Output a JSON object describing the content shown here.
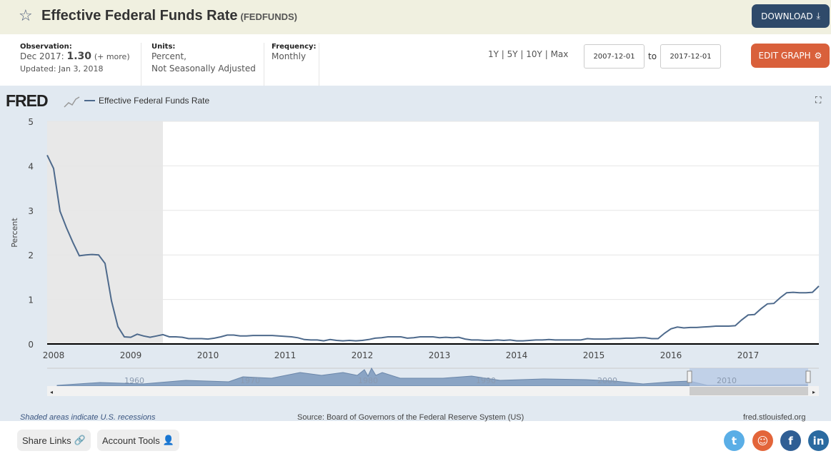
{
  "header": {
    "title": "Effective Federal Funds Rate",
    "series_id": "(FEDFUNDS)",
    "download_label": "DOWNLOAD",
    "edit_graph_label": "EDIT GRAPH"
  },
  "info": {
    "observation_label": "Observation:",
    "observation_date": "Dec 2017:",
    "observation_value": "1.30",
    "more": "(+ more)",
    "updated": "Updated: Jan 3, 2018",
    "units_label": "Units:",
    "units_1": "Percent,",
    "units_2": "Not Seasonally Adjusted",
    "frequency_label": "Frequency:",
    "frequency": "Monthly"
  },
  "range": {
    "options": [
      "1Y",
      "5Y",
      "10Y",
      "Max"
    ],
    "start": "2007-12-01",
    "to": "to",
    "end": "2017-12-01"
  },
  "chart_meta": {
    "logo": "FRED",
    "legend": "Effective Federal Funds Rate",
    "recession_note": "Shaded areas indicate U.S. recessions",
    "source": "Source: Board of Governors of the Federal Reserve System (US)",
    "site": "fred.stlouisfed.org",
    "navigator_labels": [
      "1960",
      "1970",
      "1980",
      "1990",
      "2000",
      "2010"
    ]
  },
  "footer": {
    "share": "Share Links",
    "account": "Account Tools"
  },
  "colors": {
    "line": "#4e6a8c",
    "download": "#2f4a6a",
    "edit": "#d9603b",
    "recession": "#e8e8e8"
  },
  "chart_data": {
    "type": "line",
    "title": "",
    "xlabel": "",
    "ylabel": "Percent",
    "ylim": [
      0,
      5
    ],
    "yticks": [
      0,
      1,
      2,
      3,
      4,
      5
    ],
    "xticks": [
      "2008",
      "2009",
      "2010",
      "2011",
      "2012",
      "2013",
      "2014",
      "2015",
      "2016",
      "2017"
    ],
    "start": "2007-12",
    "frequency": "monthly",
    "grid": true,
    "recessions": [
      [
        "2007-12",
        "2009-06"
      ]
    ],
    "series": [
      {
        "name": "Effective Federal Funds Rate",
        "values": [
          4.24,
          3.94,
          2.98,
          2.61,
          2.28,
          1.98,
          2.0,
          2.01,
          2.0,
          1.81,
          0.97,
          0.39,
          0.16,
          0.15,
          0.22,
          0.18,
          0.15,
          0.18,
          0.21,
          0.16,
          0.16,
          0.15,
          0.12,
          0.12,
          0.12,
          0.11,
          0.13,
          0.16,
          0.2,
          0.2,
          0.18,
          0.18,
          0.19,
          0.19,
          0.19,
          0.19,
          0.18,
          0.17,
          0.16,
          0.14,
          0.1,
          0.09,
          0.09,
          0.07,
          0.1,
          0.08,
          0.07,
          0.08,
          0.07,
          0.08,
          0.1,
          0.13,
          0.14,
          0.16,
          0.16,
          0.16,
          0.13,
          0.14,
          0.16,
          0.16,
          0.16,
          0.14,
          0.15,
          0.14,
          0.15,
          0.11,
          0.09,
          0.09,
          0.08,
          0.08,
          0.09,
          0.08,
          0.09,
          0.07,
          0.07,
          0.08,
          0.09,
          0.09,
          0.1,
          0.09,
          0.09,
          0.09,
          0.09,
          0.09,
          0.12,
          0.11,
          0.11,
          0.11,
          0.12,
          0.12,
          0.13,
          0.13,
          0.14,
          0.14,
          0.12,
          0.12,
          0.24,
          0.34,
          0.38,
          0.36,
          0.37,
          0.37,
          0.38,
          0.39,
          0.4,
          0.4,
          0.4,
          0.41,
          0.54,
          0.65,
          0.66,
          0.79,
          0.9,
          0.91,
          1.04,
          1.15,
          1.16,
          1.15,
          1.15,
          1.16,
          1.3
        ]
      }
    ]
  }
}
